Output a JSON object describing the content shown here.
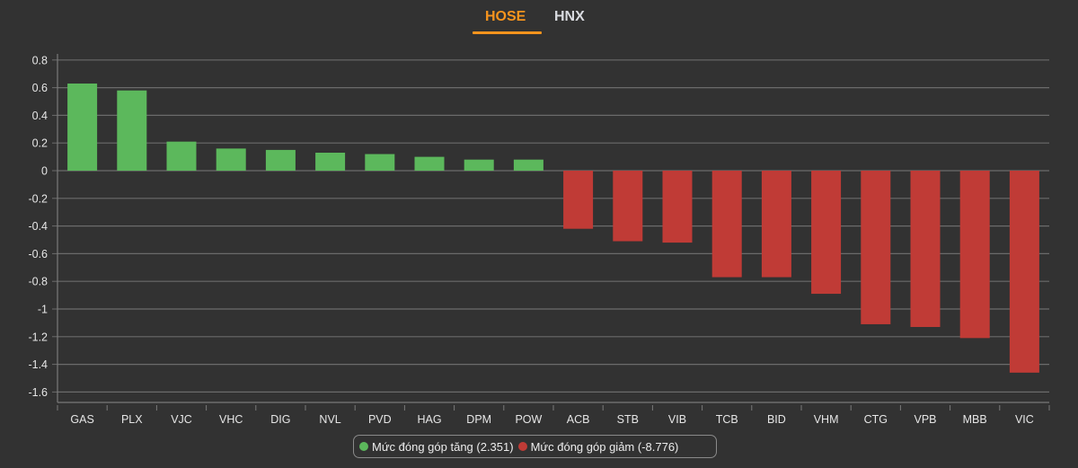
{
  "tabs": [
    {
      "label": "HOSE",
      "active": true
    },
    {
      "label": "HNX",
      "active": false
    }
  ],
  "colors": {
    "accent": "#f7941d",
    "increase": "#5cb85c",
    "decrease": "#c03b36",
    "background": "#323232",
    "grid": "#6b6b6b"
  },
  "legend": {
    "increase_label": "Mức đóng góp tăng (2.351)",
    "decrease_label": "Mức đóng góp giảm (-8.776)"
  },
  "chart_data": {
    "type": "bar",
    "title": "",
    "xlabel": "",
    "ylabel": "",
    "ylim": [
      -1.6,
      0.8
    ],
    "yticks": [
      0.8,
      0.6,
      0.4,
      0.2,
      0,
      -0.2,
      -0.4,
      -0.6,
      -0.8,
      -1,
      -1.2,
      -1.4,
      -1.6
    ],
    "grid": true,
    "legend_position": "bottom",
    "categories": [
      "GAS",
      "PLX",
      "VJC",
      "VHC",
      "DIG",
      "NVL",
      "PVD",
      "HAG",
      "DPM",
      "POW",
      "ACB",
      "STB",
      "VIB",
      "TCB",
      "BID",
      "VHM",
      "CTG",
      "VPB",
      "MBB",
      "VIC"
    ],
    "values": [
      0.63,
      0.58,
      0.21,
      0.16,
      0.15,
      0.13,
      0.12,
      0.1,
      0.08,
      0.08,
      -0.42,
      -0.51,
      -0.52,
      -0.77,
      -0.77,
      -0.89,
      -1.11,
      -1.13,
      -1.21,
      -1.46
    ],
    "series": [
      {
        "name": "Mức đóng góp tăng (2.351)",
        "color": "#5cb85c",
        "categories": [
          "GAS",
          "PLX",
          "VJC",
          "VHC",
          "DIG",
          "NVL",
          "PVD",
          "HAG",
          "DPM",
          "POW"
        ],
        "values": [
          0.63,
          0.58,
          0.21,
          0.16,
          0.15,
          0.13,
          0.12,
          0.1,
          0.08,
          0.08
        ]
      },
      {
        "name": "Mức đóng góp giảm (-8.776)",
        "color": "#c03b36",
        "categories": [
          "ACB",
          "STB",
          "VIB",
          "TCB",
          "BID",
          "VHM",
          "CTG",
          "VPB",
          "MBB",
          "VIC"
        ],
        "values": [
          -0.42,
          -0.51,
          -0.52,
          -0.77,
          -0.77,
          -0.89,
          -1.11,
          -1.13,
          -1.21,
          -1.46
        ]
      }
    ]
  }
}
